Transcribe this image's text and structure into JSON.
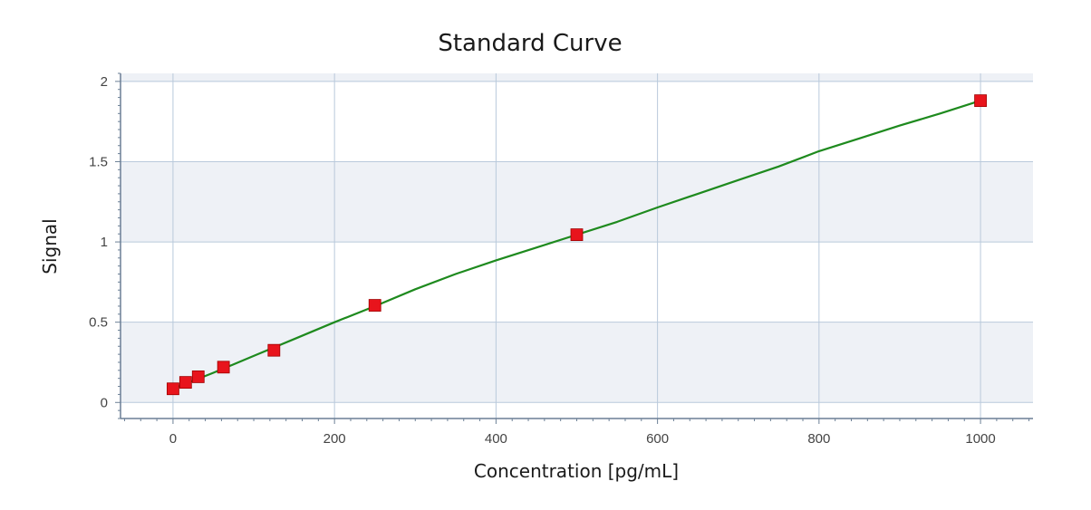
{
  "chart_data": {
    "type": "scatter",
    "title": "Standard Curve",
    "xlabel": "Concentration [pg/mL]",
    "ylabel": "Signal",
    "xlim": [
      -65,
      1065
    ],
    "ylim": [
      -0.1,
      2.05
    ],
    "x_ticks": [
      0,
      200,
      400,
      600,
      800,
      1000
    ],
    "y_ticks": [
      0,
      0.5,
      1,
      1.5,
      2
    ],
    "x_tick_labels": [
      "0",
      "200",
      "400",
      "600",
      "800",
      "1000"
    ],
    "y_tick_labels": [
      "0",
      "0.5",
      "1",
      "1.5",
      "2"
    ],
    "grid": true,
    "legend": "none",
    "series": [
      {
        "kind": "points",
        "marker": "square",
        "color": "#e8141c",
        "x": [
          0,
          15.6,
          31.25,
          62.5,
          125,
          250,
          500,
          1000
        ],
        "y": [
          0.085,
          0.125,
          0.16,
          0.22,
          0.325,
          0.605,
          1.045,
          1.88
        ]
      },
      {
        "kind": "fit-line",
        "color": "#1e8a1e",
        "x": [
          0,
          50,
          100,
          150,
          200,
          250,
          300,
          350,
          400,
          450,
          500,
          550,
          600,
          650,
          700,
          750,
          800,
          850,
          900,
          950,
          1000
        ],
        "y": [
          0.085,
          0.185,
          0.29,
          0.395,
          0.5,
          0.6,
          0.705,
          0.8,
          0.885,
          0.965,
          1.045,
          1.125,
          1.215,
          1.3,
          1.385,
          1.47,
          1.565,
          1.645,
          1.725,
          1.8,
          1.88
        ]
      }
    ],
    "colors": {
      "bands": [
        "#eef1f6",
        "#ffffff"
      ],
      "grid": "#b9c9db",
      "axis": "#6b7f95"
    }
  }
}
